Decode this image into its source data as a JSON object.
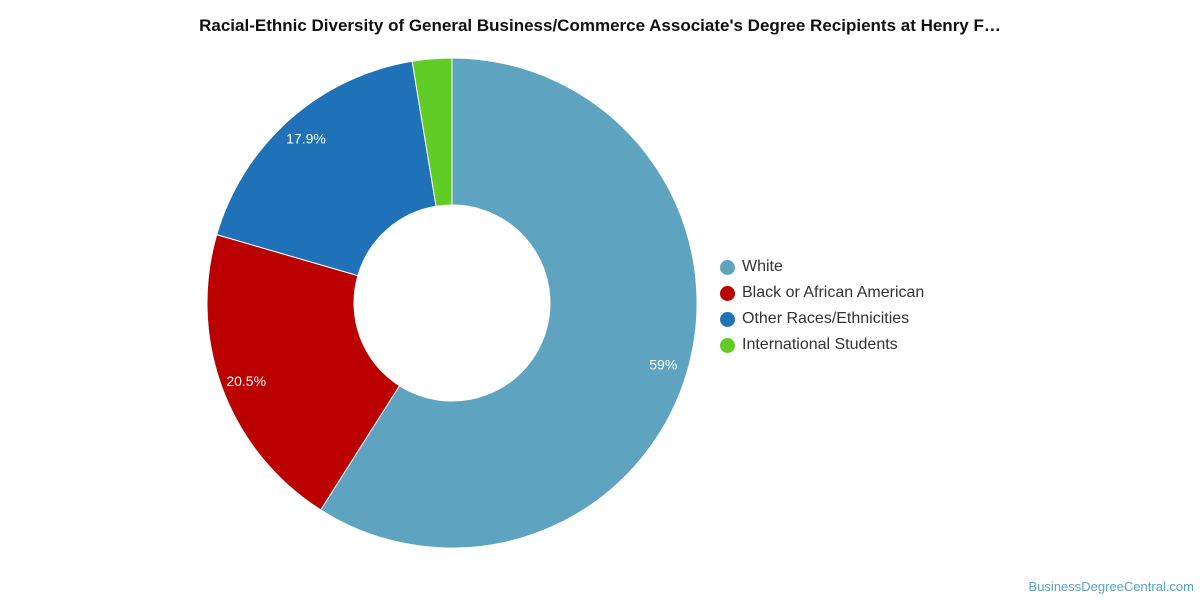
{
  "chart_data": {
    "type": "pie",
    "title": "Racial-Ethnic Diversity of General Business/Commerce Associate's Degree Recipients at Henry F…",
    "donut": true,
    "categories": [
      "White",
      "Black or African American",
      "Other Races/Ethnicities",
      "International Students"
    ],
    "values": [
      59,
      20.5,
      17.9,
      2.6
    ],
    "data_labels": [
      "59%",
      "20.5%",
      "17.9%",
      ""
    ],
    "colors": [
      "#5ea3bf",
      "#bb0000",
      "#1f72b8",
      "#62cc27"
    ],
    "legend_position": "right"
  },
  "watermark": "BusinessDegreeCentral.com"
}
